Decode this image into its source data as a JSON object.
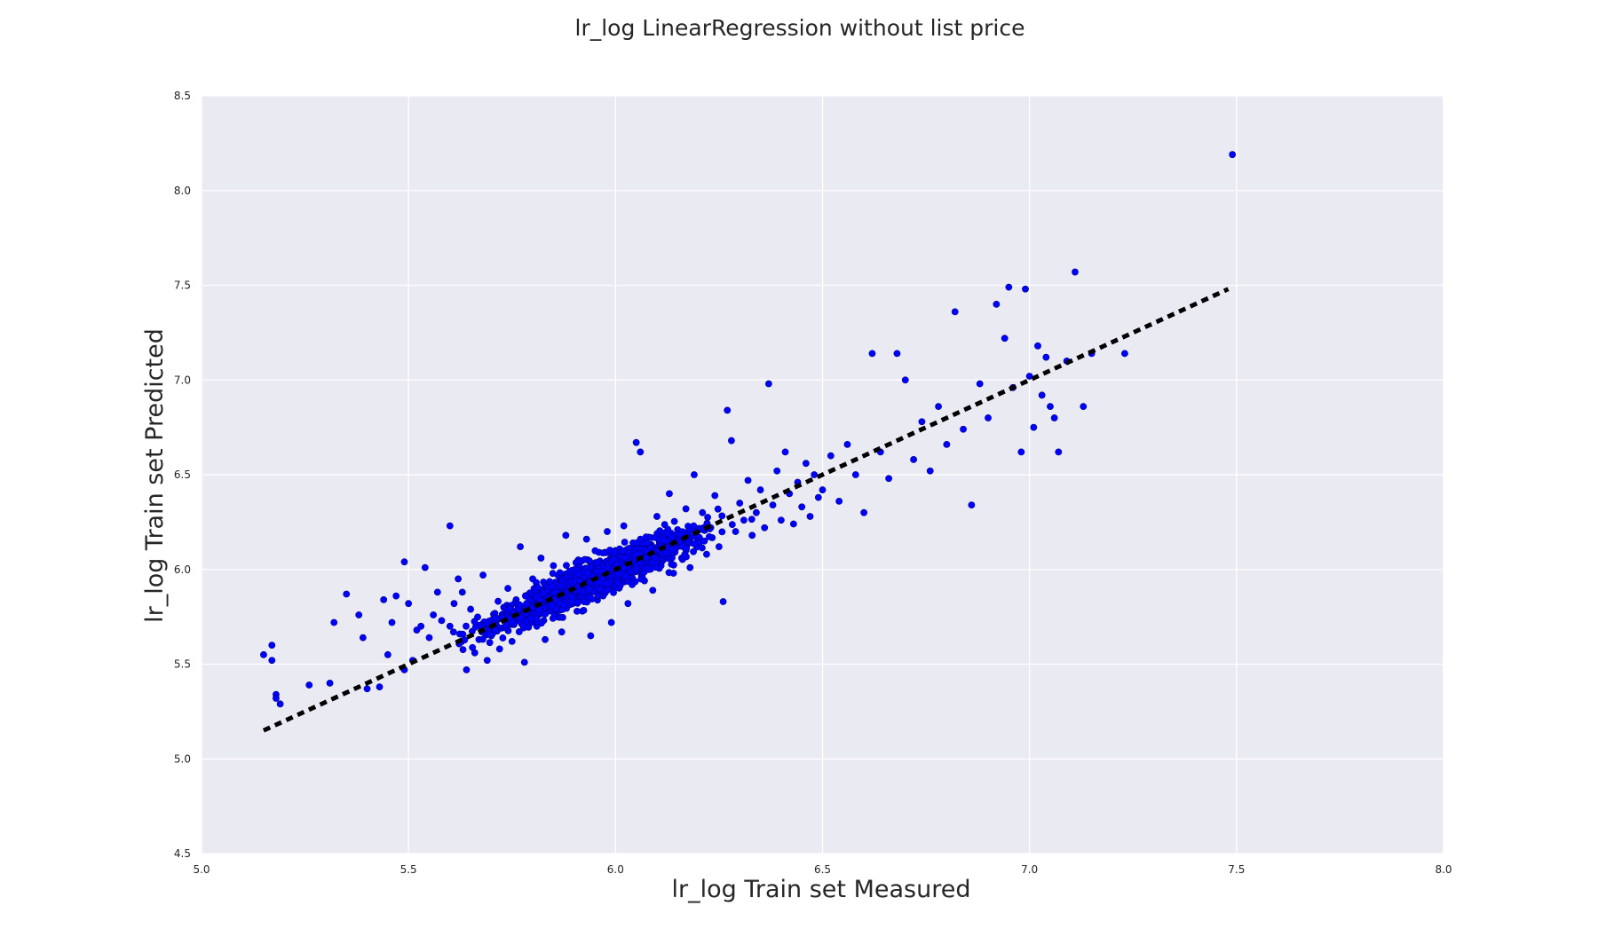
{
  "chart_data": {
    "type": "scatter",
    "title": "lr_log LinearRegression without list price",
    "xlabel": "lr_log Train set Measured",
    "ylabel": "lr_log Train set Predicted",
    "xlim": [
      5.0,
      8.0
    ],
    "ylim": [
      4.5,
      8.5
    ],
    "x_ticks": [
      "5.0",
      "5.5",
      "6.0",
      "6.5",
      "7.0",
      "7.5",
      "8.0"
    ],
    "y_ticks": [
      "4.5",
      "5.0",
      "5.5",
      "6.0",
      "6.5",
      "7.0",
      "7.5",
      "8.0",
      "8.5"
    ],
    "grid": true,
    "background_color": "#eaeaf2",
    "point_color": "#0000ff",
    "reference_line": {
      "style": "dashed",
      "color": "#000000",
      "x": [
        5.15,
        7.48
      ],
      "y": [
        5.15,
        7.48
      ]
    },
    "series": [
      {
        "points": [
          [
            5.15,
            5.55
          ],
          [
            5.17,
            5.6
          ],
          [
            5.17,
            5.52
          ],
          [
            5.18,
            5.34
          ],
          [
            5.18,
            5.32
          ],
          [
            5.19,
            5.29
          ],
          [
            5.26,
            5.39
          ],
          [
            5.31,
            5.4
          ],
          [
            5.32,
            5.72
          ],
          [
            5.35,
            5.87
          ],
          [
            5.38,
            5.76
          ],
          [
            5.39,
            5.64
          ],
          [
            5.4,
            5.37
          ],
          [
            5.43,
            5.38
          ],
          [
            5.44,
            5.84
          ],
          [
            5.45,
            5.55
          ],
          [
            5.46,
            5.72
          ],
          [
            5.47,
            5.86
          ],
          [
            5.49,
            6.04
          ],
          [
            5.49,
            5.47
          ],
          [
            5.5,
            5.82
          ],
          [
            5.51,
            5.52
          ],
          [
            5.52,
            5.68
          ],
          [
            5.53,
            5.7
          ],
          [
            5.54,
            6.01
          ],
          [
            5.55,
            5.64
          ],
          [
            5.56,
            5.76
          ],
          [
            5.57,
            5.88
          ],
          [
            5.58,
            5.73
          ],
          [
            5.6,
            6.23
          ],
          [
            5.6,
            5.7
          ],
          [
            5.61,
            5.82
          ],
          [
            5.62,
            5.95
          ],
          [
            5.63,
            5.88
          ],
          [
            5.64,
            5.47
          ],
          [
            5.65,
            5.79
          ],
          [
            5.66,
            5.56
          ],
          [
            5.67,
            5.63
          ],
          [
            5.68,
            5.97
          ],
          [
            5.69,
            5.52
          ],
          [
            5.7,
            5.65
          ],
          [
            5.71,
            5.74
          ],
          [
            5.72,
            5.58
          ],
          [
            5.73,
            5.8
          ],
          [
            5.74,
            5.9
          ],
          [
            5.75,
            5.62
          ],
          [
            5.76,
            5.84
          ],
          [
            5.77,
            6.12
          ],
          [
            5.78,
            5.51
          ],
          [
            5.79,
            5.77
          ],
          [
            5.8,
            5.95
          ],
          [
            5.81,
            5.7
          ],
          [
            5.82,
            6.06
          ],
          [
            5.83,
            5.63
          ],
          [
            5.84,
            5.88
          ],
          [
            5.85,
            6.02
          ],
          [
            5.86,
            5.75
          ],
          [
            5.87,
            5.67
          ],
          [
            5.88,
            6.18
          ],
          [
            5.89,
            5.85
          ],
          [
            5.9,
            5.92
          ],
          [
            5.91,
            6.05
          ],
          [
            5.92,
            5.78
          ],
          [
            5.93,
            6.16
          ],
          [
            5.94,
            5.65
          ],
          [
            5.95,
            6.0
          ],
          [
            5.96,
            6.09
          ],
          [
            5.97,
            5.86
          ],
          [
            5.98,
            6.2
          ],
          [
            5.99,
            5.72
          ],
          [
            6.0,
            6.1
          ],
          [
            6.01,
            5.96
          ],
          [
            6.02,
            6.23
          ],
          [
            6.03,
            5.82
          ],
          [
            6.04,
            6.05
          ],
          [
            6.05,
            6.67
          ],
          [
            6.06,
            6.62
          ],
          [
            6.07,
            5.94
          ],
          [
            6.08,
            6.17
          ],
          [
            6.09,
            5.89
          ],
          [
            6.1,
            6.28
          ],
          [
            6.11,
            6.02
          ],
          [
            6.12,
            6.12
          ],
          [
            6.13,
            6.4
          ],
          [
            6.14,
            5.98
          ],
          [
            6.15,
            6.21
          ],
          [
            6.16,
            6.06
          ],
          [
            6.17,
            6.32
          ],
          [
            6.18,
            6.01
          ],
          [
            6.19,
            6.5
          ],
          [
            6.2,
            6.15
          ],
          [
            6.21,
            6.3
          ],
          [
            6.22,
            6.08
          ],
          [
            6.23,
            6.22
          ],
          [
            6.24,
            6.39
          ],
          [
            6.25,
            6.12
          ],
          [
            6.26,
            5.83
          ],
          [
            6.27,
            6.84
          ],
          [
            6.28,
            6.68
          ],
          [
            6.29,
            6.2
          ],
          [
            6.3,
            6.35
          ],
          [
            6.31,
            6.26
          ],
          [
            6.32,
            6.47
          ],
          [
            6.33,
            6.18
          ],
          [
            6.34,
            6.3
          ],
          [
            6.35,
            6.42
          ],
          [
            6.36,
            6.22
          ],
          [
            6.37,
            6.98
          ],
          [
            6.38,
            6.34
          ],
          [
            6.39,
            6.52
          ],
          [
            6.4,
            6.26
          ],
          [
            6.41,
            6.62
          ],
          [
            6.42,
            6.4
          ],
          [
            6.43,
            6.24
          ],
          [
            6.44,
            6.46
          ],
          [
            6.45,
            6.33
          ],
          [
            6.46,
            6.56
          ],
          [
            6.47,
            6.28
          ],
          [
            6.48,
            6.5
          ],
          [
            6.49,
            6.38
          ],
          [
            6.5,
            6.42
          ],
          [
            6.52,
            6.6
          ],
          [
            6.54,
            6.36
          ],
          [
            6.56,
            6.66
          ],
          [
            6.58,
            6.5
          ],
          [
            6.6,
            6.3
          ],
          [
            6.62,
            7.14
          ],
          [
            6.64,
            6.62
          ],
          [
            6.66,
            6.48
          ],
          [
            6.68,
            7.14
          ],
          [
            6.7,
            7.0
          ],
          [
            6.72,
            6.58
          ],
          [
            6.74,
            6.78
          ],
          [
            6.76,
            6.52
          ],
          [
            6.78,
            6.86
          ],
          [
            6.8,
            6.66
          ],
          [
            6.82,
            7.36
          ],
          [
            6.84,
            6.74
          ],
          [
            6.86,
            6.34
          ],
          [
            6.88,
            6.98
          ],
          [
            6.9,
            6.8
          ],
          [
            6.92,
            7.4
          ],
          [
            6.94,
            7.22
          ],
          [
            6.95,
            7.49
          ],
          [
            6.96,
            6.96
          ],
          [
            6.98,
            6.62
          ],
          [
            6.99,
            7.48
          ],
          [
            7.0,
            7.02
          ],
          [
            7.01,
            6.75
          ],
          [
            7.02,
            7.18
          ],
          [
            7.03,
            6.92
          ],
          [
            7.04,
            7.12
          ],
          [
            7.05,
            6.86
          ],
          [
            7.06,
            6.8
          ],
          [
            7.07,
            6.62
          ],
          [
            7.09,
            7.1
          ],
          [
            7.11,
            7.57
          ],
          [
            7.13,
            6.86
          ],
          [
            7.15,
            7.14
          ],
          [
            7.23,
            7.14
          ],
          [
            7.49,
            8.19
          ]
        ]
      }
    ]
  }
}
